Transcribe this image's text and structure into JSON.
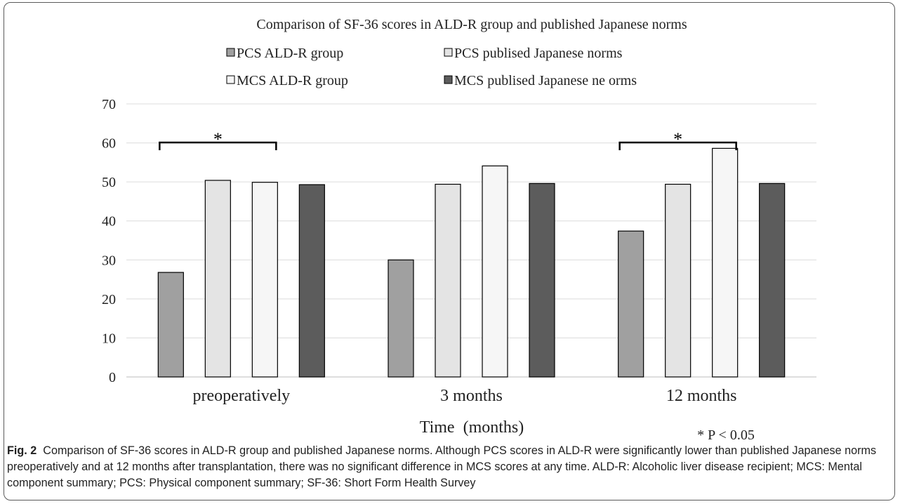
{
  "chart_data": {
    "type": "bar",
    "title": "Comparison of SF-36 scores in ALD-R group and published Japanese norms",
    "xlabel": "Time  (months)",
    "ylabel": "",
    "categories": [
      "preoperatively",
      "3 months",
      "12 months"
    ],
    "ylim": [
      0,
      70
    ],
    "yticks": [
      0,
      10,
      20,
      30,
      40,
      50,
      60,
      70
    ],
    "grid": true,
    "legend_position": "top",
    "series": [
      {
        "name": "PCS ALD-R group",
        "color": "#a0a0a0",
        "values": [
          26.8,
          30.0,
          37.4
        ]
      },
      {
        "name": "PCS publised Japanese norms",
        "color": "#e4e4e4",
        "values": [
          50.4,
          49.4,
          49.4
        ]
      },
      {
        "name": "MCS ALD-R group",
        "color": "#f6f6f6",
        "values": [
          49.9,
          54.1,
          58.6
        ]
      },
      {
        "name": "MCS publised Japanese ne orms",
        "color": "#5c5c5c",
        "values": [
          49.3,
          49.6,
          49.6
        ]
      }
    ],
    "significance": [
      {
        "category_index": 0,
        "series": [
          0,
          2
        ],
        "label": "*"
      },
      {
        "category_index": 2,
        "series": [
          0,
          2
        ],
        "label": "*"
      }
    ],
    "annotation": "* P < 0.05"
  },
  "caption": {
    "label": "Fig. 2",
    "text": "Comparison of SF-36 scores in ALD-R group and published Japanese norms. Although PCS scores in ALD-R were significantly lower than published Japanese norms preoperatively and at 12 months after transplantation, there was no significant difference in MCS scores at any time. ALD-R: Alcoholic liver disease recipient; MCS: Mental component summary; PCS: Physical component summary; SF-36: Short Form Health Survey"
  }
}
